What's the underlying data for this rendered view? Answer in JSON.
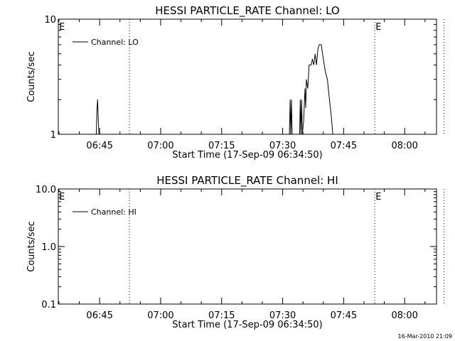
{
  "footer": {
    "timestamp": "16-Mar-2010 21:09"
  },
  "chart_data": [
    {
      "type": "line",
      "title": "HESSI PARTICLE_RATE Channel: LO",
      "xlabel": "Start Time (17-Sep-09 06:34:50)",
      "ylabel": "Counts/sec",
      "yscale": "log",
      "ylim": [
        1,
        10
      ],
      "xlim": [
        "06:34:50",
        "08:07:50"
      ],
      "x_ticks": [
        "06:45",
        "07:00",
        "07:15",
        "07:30",
        "07:45",
        "08:00"
      ],
      "y_ticks": [
        "1",
        "10"
      ],
      "grid": false,
      "legend": {
        "position": "top-left",
        "entries": [
          "Channel: LO"
        ]
      },
      "markers": [
        {
          "time": "06:52:20",
          "style": "dotted",
          "label": ""
        },
        {
          "time": "07:52:40",
          "style": "dotted",
          "label": "E"
        },
        {
          "time": "08:09:40",
          "style": "dotted",
          "label": ""
        }
      ],
      "start_label": "E",
      "series": [
        {
          "name": "Channel: LO",
          "points": [
            [
              "06:44:10",
              1.0
            ],
            [
              "06:44:20",
              1.6
            ],
            [
              "06:44:30",
              2.0
            ],
            [
              "06:44:40",
              1.3
            ],
            [
              "06:44:50",
              1.0
            ],
            [
              "07:31:40",
              1.0
            ],
            [
              "07:31:50",
              2.0
            ],
            [
              "07:32:00",
              1.0
            ],
            [
              "07:32:10",
              2.0
            ],
            [
              "07:32:20",
              1.0
            ],
            [
              "07:34:10",
              1.0
            ],
            [
              "07:34:20",
              2.0
            ],
            [
              "07:34:30",
              1.0
            ],
            [
              "07:34:40",
              2.0
            ],
            [
              "07:34:50",
              1.0
            ],
            [
              "07:35:10",
              1.3
            ],
            [
              "07:35:30",
              2.5
            ],
            [
              "07:35:40",
              1.7
            ],
            [
              "07:35:50",
              3.0
            ],
            [
              "07:36:10",
              2.5
            ],
            [
              "07:36:30",
              4.0
            ],
            [
              "07:37:00",
              4.0
            ],
            [
              "07:37:20",
              4.5
            ],
            [
              "07:37:40",
              4.0
            ],
            [
              "07:38:00",
              5.0
            ],
            [
              "07:38:20",
              4.0
            ],
            [
              "07:38:40",
              5.5
            ],
            [
              "07:39:00",
              6.0
            ],
            [
              "07:39:30",
              6.0
            ],
            [
              "07:40:00",
              4.5
            ],
            [
              "07:40:30",
              3.5
            ],
            [
              "07:41:00",
              3.0
            ],
            [
              "07:41:30",
              2.0
            ],
            [
              "07:42:00",
              1.4
            ],
            [
              "07:42:20",
              1.0
            ]
          ]
        }
      ]
    },
    {
      "type": "line",
      "title": "HESSI PARTICLE_RATE Channel: HI",
      "xlabel": "Start Time (17-Sep-09 06:34:50)",
      "ylabel": "Counts/sec",
      "yscale": "log",
      "ylim": [
        0.1,
        10
      ],
      "xlim": [
        "06:34:50",
        "08:07:50"
      ],
      "x_ticks": [
        "06:45",
        "07:00",
        "07:15",
        "07:30",
        "07:45",
        "08:00"
      ],
      "y_ticks": [
        "0.1",
        "1.0",
        "10.0"
      ],
      "grid": false,
      "legend": {
        "position": "top-left",
        "entries": [
          "Channel: HI"
        ]
      },
      "markers": [
        {
          "time": "06:52:20",
          "style": "dotted",
          "label": ""
        },
        {
          "time": "07:52:40",
          "style": "dotted",
          "label": "E"
        },
        {
          "time": "08:09:40",
          "style": "dotted",
          "label": ""
        }
      ],
      "start_label": "E",
      "series": [
        {
          "name": "Channel: HI",
          "points": []
        }
      ]
    }
  ]
}
